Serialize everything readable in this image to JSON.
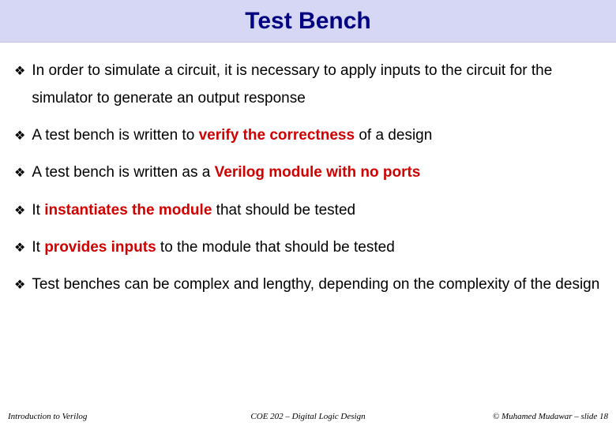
{
  "title": "Test Bench",
  "title_color": "#000080",
  "title_bg": "#d6d6f5",
  "title_font": "Comic Sans MS",
  "title_fontsize": 30,
  "bullet_glyph": "❖",
  "bullet_fontsize": 19,
  "highlight_color": "#d00000",
  "bullets": [
    {
      "pre": "In order to simulate a circuit, it is necessary to apply inputs to the circuit for the simulator to generate an output response",
      "hl": "",
      "post": ""
    },
    {
      "pre": "A test bench is written to ",
      "hl": "verify the correctness",
      "post": " of a design"
    },
    {
      "pre": "A test bench is written as a ",
      "hl": "Verilog module with no ports",
      "post": ""
    },
    {
      "pre": "It ",
      "hl": "instantiates the module",
      "post": " that should be tested"
    },
    {
      "pre": "It ",
      "hl": "provides inputs",
      "post": " to the module that should be tested"
    },
    {
      "pre": "Test benches can be complex and lengthy, depending on the complexity of the design",
      "hl": "",
      "post": ""
    }
  ],
  "footer": {
    "left": "Introduction to Verilog",
    "center": "COE 202 – Digital Logic Design",
    "right": "© Muhamed Mudawar – slide 18"
  }
}
